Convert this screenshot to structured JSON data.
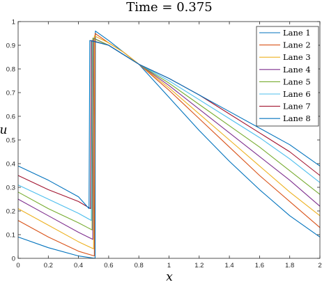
{
  "chart_data": {
    "type": "line",
    "title": "Time = 0.375",
    "xlabel": "x",
    "ylabel": "u",
    "xlim": [
      0,
      2
    ],
    "ylim": [
      0,
      1
    ],
    "xticks": [
      0,
      0.2,
      0.4,
      0.6,
      0.8,
      1,
      1.2,
      1.4,
      1.6,
      1.8,
      2
    ],
    "xtick_labels": [
      "0",
      "0.2",
      "0.4",
      "0.6",
      "0.8",
      "1",
      "1.2",
      "1.4",
      "1.6",
      "1.8",
      "2"
    ],
    "yticks": [
      0,
      0.1,
      0.2,
      0.3,
      0.4,
      0.5,
      0.6,
      0.7,
      0.8,
      0.9,
      1
    ],
    "ytick_labels": [
      "0",
      "0.1",
      "0.2",
      "0.3",
      "0.4",
      "0.5",
      "0.6",
      "0.7",
      "0.8",
      "0.9",
      "1"
    ],
    "grid": false,
    "legend_position": "top-right",
    "series": [
      {
        "name": "Lane 1",
        "color": "#0072BD",
        "points": [
          [
            0,
            0.09
          ],
          [
            0.2,
            0.045
          ],
          [
            0.4,
            0.01
          ],
          [
            0.51,
            0.0
          ],
          [
            0.512,
            0.96
          ],
          [
            0.6,
            0.92
          ],
          [
            0.7,
            0.87
          ],
          [
            0.8,
            0.82
          ],
          [
            1.0,
            0.68
          ],
          [
            1.2,
            0.54
          ],
          [
            1.4,
            0.41
          ],
          [
            1.6,
            0.29
          ],
          [
            1.8,
            0.18
          ],
          [
            2.0,
            0.09
          ]
        ]
      },
      {
        "name": "Lane 2",
        "color": "#D95319",
        "points": [
          [
            0,
            0.16
          ],
          [
            0.2,
            0.09
          ],
          [
            0.4,
            0.03
          ],
          [
            0.505,
            0.01
          ],
          [
            0.51,
            0.95
          ],
          [
            0.6,
            0.91
          ],
          [
            0.7,
            0.87
          ],
          [
            0.8,
            0.82
          ],
          [
            1.0,
            0.71
          ],
          [
            1.2,
            0.59
          ],
          [
            1.4,
            0.47
          ],
          [
            1.6,
            0.35
          ],
          [
            1.8,
            0.24
          ],
          [
            2.0,
            0.13
          ]
        ]
      },
      {
        "name": "Lane 3",
        "color": "#EDB120",
        "points": [
          [
            0,
            0.21
          ],
          [
            0.2,
            0.14
          ],
          [
            0.4,
            0.07
          ],
          [
            0.5,
            0.04
          ],
          [
            0.505,
            0.94
          ],
          [
            0.6,
            0.91
          ],
          [
            0.7,
            0.87
          ],
          [
            0.8,
            0.82
          ],
          [
            1.0,
            0.72
          ],
          [
            1.2,
            0.61
          ],
          [
            1.4,
            0.5
          ],
          [
            1.6,
            0.39
          ],
          [
            1.8,
            0.28
          ],
          [
            2.0,
            0.18
          ]
        ]
      },
      {
        "name": "Lane 4",
        "color": "#7E2F8E",
        "points": [
          [
            0,
            0.25
          ],
          [
            0.2,
            0.18
          ],
          [
            0.4,
            0.11
          ],
          [
            0.495,
            0.08
          ],
          [
            0.5,
            0.93
          ],
          [
            0.6,
            0.9
          ],
          [
            0.7,
            0.86
          ],
          [
            0.8,
            0.82
          ],
          [
            1.0,
            0.73
          ],
          [
            1.2,
            0.63
          ],
          [
            1.4,
            0.53
          ],
          [
            1.6,
            0.43
          ],
          [
            1.8,
            0.33
          ],
          [
            2.0,
            0.22
          ]
        ]
      },
      {
        "name": "Lane 5",
        "color": "#77AC30",
        "points": [
          [
            0,
            0.28
          ],
          [
            0.2,
            0.21
          ],
          [
            0.4,
            0.15
          ],
          [
            0.49,
            0.12
          ],
          [
            0.495,
            0.93
          ],
          [
            0.6,
            0.9
          ],
          [
            0.7,
            0.86
          ],
          [
            0.8,
            0.82
          ],
          [
            1.0,
            0.74
          ],
          [
            1.2,
            0.65
          ],
          [
            1.4,
            0.56
          ],
          [
            1.6,
            0.47
          ],
          [
            1.8,
            0.37
          ],
          [
            2.0,
            0.27
          ]
        ]
      },
      {
        "name": "Lane 6",
        "color": "#4DBEEE",
        "points": [
          [
            0,
            0.31
          ],
          [
            0.2,
            0.25
          ],
          [
            0.4,
            0.19
          ],
          [
            0.485,
            0.16
          ],
          [
            0.49,
            0.92
          ],
          [
            0.6,
            0.9
          ],
          [
            0.7,
            0.86
          ],
          [
            0.8,
            0.82
          ],
          [
            1.0,
            0.75
          ],
          [
            1.2,
            0.67
          ],
          [
            1.4,
            0.59
          ],
          [
            1.6,
            0.51
          ],
          [
            1.8,
            0.42
          ],
          [
            2.0,
            0.32
          ]
        ]
      },
      {
        "name": "Lane 7",
        "color": "#A2142F",
        "points": [
          [
            0,
            0.35
          ],
          [
            0.2,
            0.29
          ],
          [
            0.4,
            0.24
          ],
          [
            0.48,
            0.21
          ],
          [
            0.485,
            0.92
          ],
          [
            0.6,
            0.9
          ],
          [
            0.7,
            0.86
          ],
          [
            0.8,
            0.82
          ],
          [
            1.0,
            0.76
          ],
          [
            1.2,
            0.69
          ],
          [
            1.4,
            0.61
          ],
          [
            1.6,
            0.53
          ],
          [
            1.8,
            0.45
          ],
          [
            2.0,
            0.35
          ]
        ]
      },
      {
        "name": "Lane 8",
        "color": "#0072BD",
        "points": [
          [
            0,
            0.39
          ],
          [
            0.2,
            0.33
          ],
          [
            0.4,
            0.26
          ],
          [
            0.47,
            0.21
          ],
          [
            0.475,
            0.92
          ],
          [
            0.6,
            0.9
          ],
          [
            0.7,
            0.86
          ],
          [
            0.8,
            0.82
          ],
          [
            1.0,
            0.76
          ],
          [
            1.2,
            0.69
          ],
          [
            1.4,
            0.62
          ],
          [
            1.6,
            0.55
          ],
          [
            1.8,
            0.48
          ],
          [
            2.0,
            0.39
          ]
        ]
      }
    ]
  }
}
